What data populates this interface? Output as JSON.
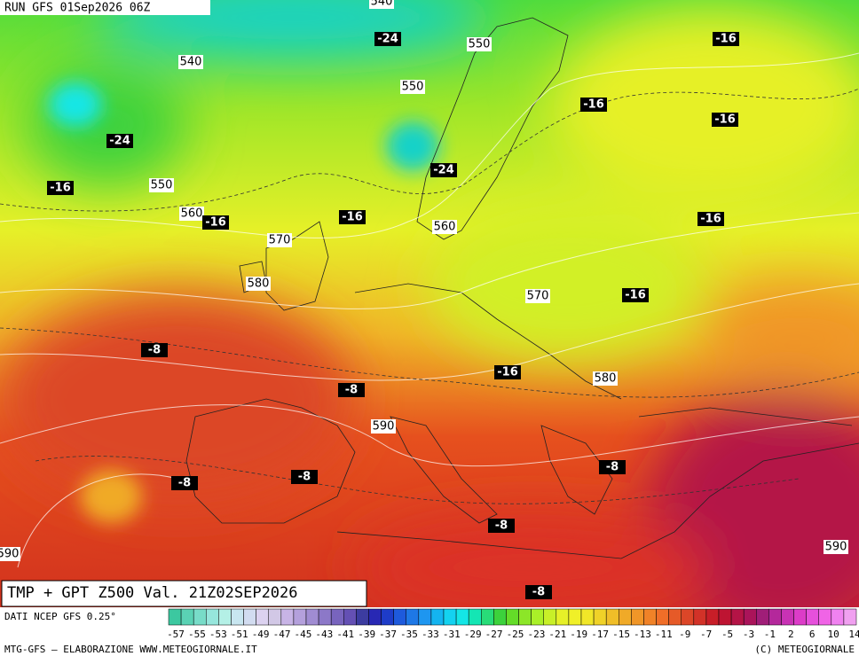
{
  "header": {
    "run": "RUN GFS 01Sep2026 06Z"
  },
  "map": {
    "title": "TMP + GPT Z500 Val. 21Z02SEP2026",
    "height_labels": [
      540,
      540,
      550,
      550,
      550,
      560,
      560,
      570,
      580,
      570,
      580,
      590,
      590,
      590
    ],
    "temperature_labels": [
      -24,
      -16,
      -16,
      -16,
      -24,
      -24,
      -16,
      -16,
      -16,
      -16,
      -16,
      -8,
      -8,
      -16,
      -8,
      -8,
      -8,
      -8,
      -8
    ]
  },
  "legend": {
    "source": "DATI NCEP GFS 0.25°",
    "labels": [
      -57,
      -55,
      -53,
      -51,
      -49,
      -47,
      -45,
      -43,
      -41,
      -39,
      -37,
      -35,
      -33,
      -31,
      -29,
      -27,
      -25,
      -23,
      -21,
      -19,
      -17,
      -15,
      -13,
      -11,
      -9,
      -7,
      -5,
      -3,
      -1,
      2,
      6,
      10,
      14
    ],
    "colors": [
      "#3cc8a0",
      "#5ad2b4",
      "#78dcc8",
      "#96e6dc",
      "#b4f0e6",
      "#c8e6f0",
      "#d2dcf0",
      "#dcd2f0",
      "#d2c8e6",
      "#c8b4e6",
      "#b4a0dc",
      "#a08cd2",
      "#8c78c8",
      "#7864be",
      "#6450b4",
      "#3c3ca0",
      "#2828b4",
      "#1e3cc8",
      "#1e5adc",
      "#1e78e6",
      "#1e96f0",
      "#14b4f0",
      "#14d2f0",
      "#14e6e6",
      "#14e6b4",
      "#28dc78",
      "#3cd23c",
      "#64dc28",
      "#8ce628",
      "#aaf028",
      "#c8f028",
      "#e6f028",
      "#f0f028",
      "#f0e628",
      "#f0d228",
      "#f0be28",
      "#f0aa28",
      "#f09628",
      "#f08228",
      "#f06e28",
      "#e65a28",
      "#dc4628",
      "#d23228",
      "#c81e28",
      "#be1432",
      "#b41446",
      "#aa145a",
      "#a01e78",
      "#b4289b",
      "#c832b4",
      "#dc3cc8",
      "#e650dc",
      "#f064e6",
      "#f082f0",
      "#f0a0f0"
    ]
  },
  "footer": {
    "credit_left": "MTG-GFS — ELABORAZIONE WWW.METEOGIORNALE.IT",
    "credit_right": "(C) METEOGIORNALE"
  }
}
